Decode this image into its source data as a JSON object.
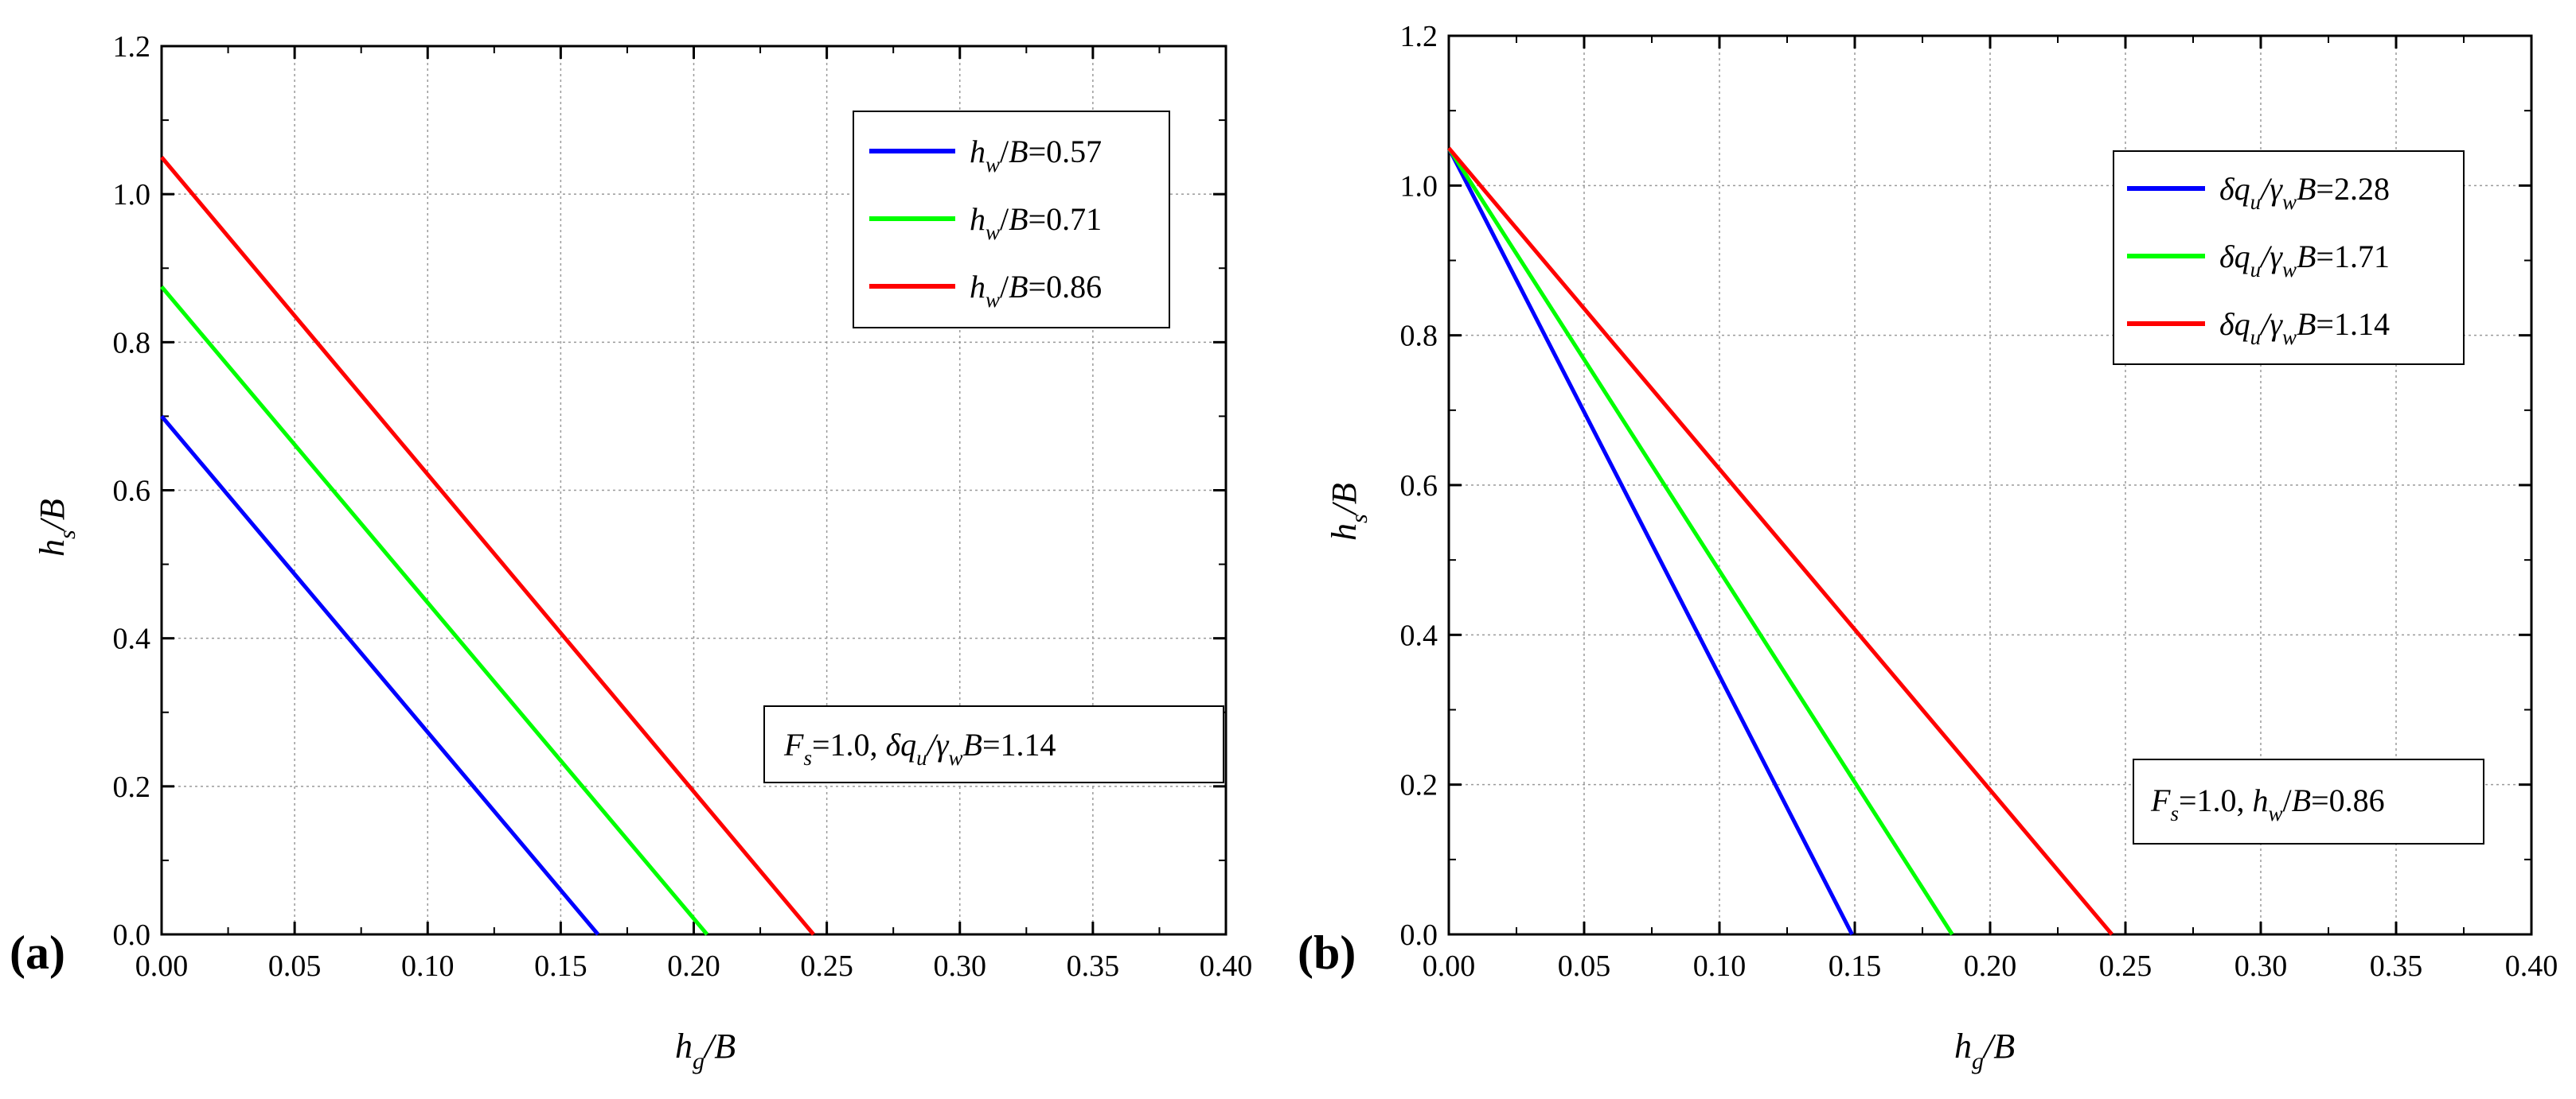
{
  "chart_data": [
    {
      "panel_label": "(a)",
      "type": "line",
      "x_ticks": [
        "0.00",
        "0.05",
        "0.10",
        "0.15",
        "0.20",
        "0.25",
        "0.30",
        "0.35",
        "0.40"
      ],
      "y_ticks": [
        "0.0",
        "0.2",
        "0.4",
        "0.6",
        "0.8",
        "1.0",
        "1.2"
      ],
      "xlim": [
        0,
        0.4
      ],
      "ylim": [
        0,
        1.2
      ],
      "xlabel": {
        "main": "h",
        "sub": "g",
        "rest": "/B"
      },
      "ylabel": {
        "main": "h",
        "sub": "s",
        "rest": "/B"
      },
      "grid": true,
      "legend_placement": "top-right",
      "series": [
        {
          "name": "h_w/B=0.57",
          "color": "#0000ff",
          "x": [
            0.0,
            0.164
          ],
          "y": [
            0.7,
            0.0
          ],
          "label": {
            "a": "h",
            "a_sub": "w",
            "b": "/",
            "c": "B",
            "d": "=0.57"
          }
        },
        {
          "name": "h_w/B=0.71",
          "color": "#00ff00",
          "x": [
            0.0,
            0.205
          ],
          "y": [
            0.875,
            0.0
          ],
          "label": {
            "a": "h",
            "a_sub": "w",
            "b": "/",
            "c": "B",
            "d": "=0.71"
          }
        },
        {
          "name": "h_w/B=0.86",
          "color": "#ff0000",
          "x": [
            0.0,
            0.245
          ],
          "y": [
            1.05,
            0.0
          ],
          "label": {
            "a": "h",
            "a_sub": "w",
            "b": "/",
            "c": "B",
            "d": "=0.86"
          }
        }
      ],
      "annotation": {
        "p1": "F",
        "p1_sub": "s",
        "p2": "=1.0, ",
        "p3": "δq",
        "p3_sub": "u",
        "p4": "/γ",
        "p4_sub": "w",
        "p5": "B",
        "p6": "=1.14"
      }
    },
    {
      "panel_label": "(b)",
      "type": "line",
      "x_ticks": [
        "0.00",
        "0.05",
        "0.10",
        "0.15",
        "0.20",
        "0.25",
        "0.30",
        "0.35",
        "0.40"
      ],
      "y_ticks": [
        "0.0",
        "0.2",
        "0.4",
        "0.6",
        "0.8",
        "1.0",
        "1.2"
      ],
      "xlim": [
        0,
        0.4
      ],
      "ylim": [
        0,
        1.2
      ],
      "xlabel": {
        "main": "h",
        "sub": "g",
        "rest": "/B"
      },
      "ylabel": {
        "main": "h",
        "sub": "s",
        "rest": "/B"
      },
      "grid": true,
      "legend_placement": "top-right",
      "series": [
        {
          "name": "δq_u/γ_wB=2.28",
          "color": "#0000ff",
          "x": [
            0.0,
            0.149
          ],
          "y": [
            1.05,
            0.0
          ],
          "label": {
            "a": "δq",
            "a_sub": "u",
            "b": "/γ",
            "b_sub": "w",
            "c": "B",
            "d": "=2.28"
          }
        },
        {
          "name": "δq_u/γ_wB=1.71",
          "color": "#00ff00",
          "x": [
            0.0,
            0.186
          ],
          "y": [
            1.05,
            0.0
          ],
          "label": {
            "a": "δq",
            "a_sub": "u",
            "b": "/γ",
            "b_sub": "w",
            "c": "B",
            "d": "=1.71"
          }
        },
        {
          "name": "δq_u/γ_wB=1.14",
          "color": "#ff0000",
          "x": [
            0.0,
            0.245
          ],
          "y": [
            1.05,
            0.0
          ],
          "label": {
            "a": "δq",
            "a_sub": "u",
            "b": "/γ",
            "b_sub": "w",
            "c": "B",
            "d": "=1.14"
          }
        }
      ],
      "annotation": {
        "p1": "F",
        "p1_sub": "s",
        "p2": "=1.0, ",
        "p3": "h",
        "p3_sub": "w",
        "p4": "/",
        "p5": "B",
        "p6": "=0.86"
      }
    }
  ]
}
